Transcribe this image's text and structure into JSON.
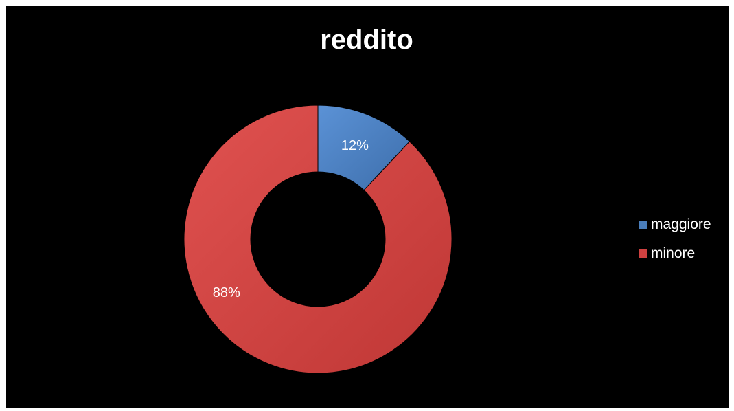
{
  "chart_data": {
    "type": "pie",
    "variant": "donut",
    "title": "reddito",
    "categories": [
      "maggiore",
      "minore"
    ],
    "values": [
      12,
      88
    ],
    "labels": [
      "12%",
      "88%"
    ],
    "colors": [
      "#4a7ebb",
      "#cf4140"
    ],
    "legend_position": "right"
  }
}
